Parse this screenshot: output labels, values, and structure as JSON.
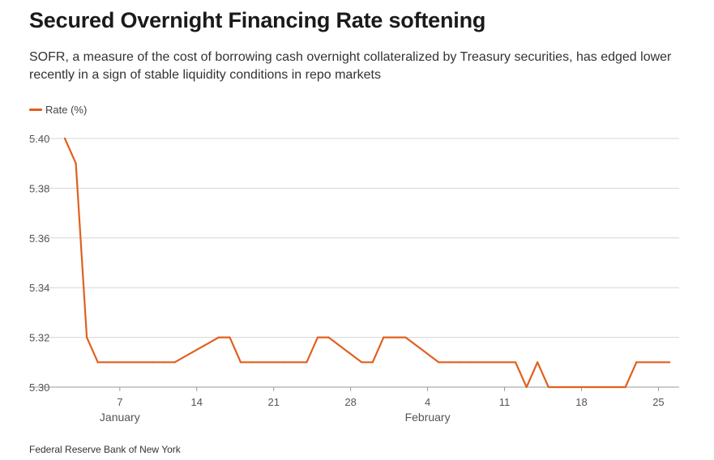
{
  "header": {
    "title": "Secured Overnight Financing Rate softening",
    "subtitle": "SOFR, a measure of the cost of borrowing cash overnight collateralized by Treasury securities, has edged lower recently in a sign of stable liquidity conditions in repo markets"
  },
  "footer": {
    "source": "Federal Reserve Bank of New York"
  },
  "colors": {
    "series": "#e0601e",
    "grid": "#d6d6d6",
    "axis_text": "#555555"
  },
  "chart_data": {
    "type": "line",
    "title": "Secured Overnight Financing Rate softening",
    "xlabel": "",
    "ylabel": "",
    "ylim": [
      5.3,
      5.4
    ],
    "xlim": [
      "2024-01-02",
      "2024-02-26"
    ],
    "grid": true,
    "legend_position": "top-left",
    "yticks": [
      "5.40",
      "5.38",
      "5.36",
      "5.34",
      "5.32",
      "5.30"
    ],
    "xticks": [
      {
        "date": "2024-01-07",
        "label": "7",
        "month": "January"
      },
      {
        "date": "2024-01-14",
        "label": "14",
        "month": ""
      },
      {
        "date": "2024-01-21",
        "label": "21",
        "month": ""
      },
      {
        "date": "2024-01-28",
        "label": "28",
        "month": ""
      },
      {
        "date": "2024-02-04",
        "label": "4",
        "month": "February"
      },
      {
        "date": "2024-02-11",
        "label": "11",
        "month": ""
      },
      {
        "date": "2024-02-18",
        "label": "18",
        "month": ""
      },
      {
        "date": "2024-02-25",
        "label": "25",
        "month": ""
      }
    ],
    "series": [
      {
        "name": "Rate (%)",
        "color": "#e0601e",
        "x": [
          "2024-01-02",
          "2024-01-03",
          "2024-01-04",
          "2024-01-05",
          "2024-01-08",
          "2024-01-09",
          "2024-01-10",
          "2024-01-11",
          "2024-01-12",
          "2024-01-16",
          "2024-01-17",
          "2024-01-18",
          "2024-01-19",
          "2024-01-22",
          "2024-01-23",
          "2024-01-24",
          "2024-01-25",
          "2024-01-26",
          "2024-01-29",
          "2024-01-30",
          "2024-01-31",
          "2024-02-01",
          "2024-02-02",
          "2024-02-05",
          "2024-02-06",
          "2024-02-07",
          "2024-02-08",
          "2024-02-09",
          "2024-02-12",
          "2024-02-13",
          "2024-02-14",
          "2024-02-15",
          "2024-02-16",
          "2024-02-20",
          "2024-02-21",
          "2024-02-22",
          "2024-02-23",
          "2024-02-26"
        ],
        "values": [
          5.4,
          5.39,
          5.32,
          5.31,
          5.31,
          5.31,
          5.31,
          5.31,
          5.31,
          5.32,
          5.32,
          5.31,
          5.31,
          5.31,
          5.31,
          5.31,
          5.32,
          5.32,
          5.31,
          5.31,
          5.32,
          5.32,
          5.32,
          5.31,
          5.31,
          5.31,
          5.31,
          5.31,
          5.31,
          5.3,
          5.31,
          5.3,
          5.3,
          5.3,
          5.3,
          5.3,
          5.31,
          5.31
        ]
      }
    ]
  }
}
